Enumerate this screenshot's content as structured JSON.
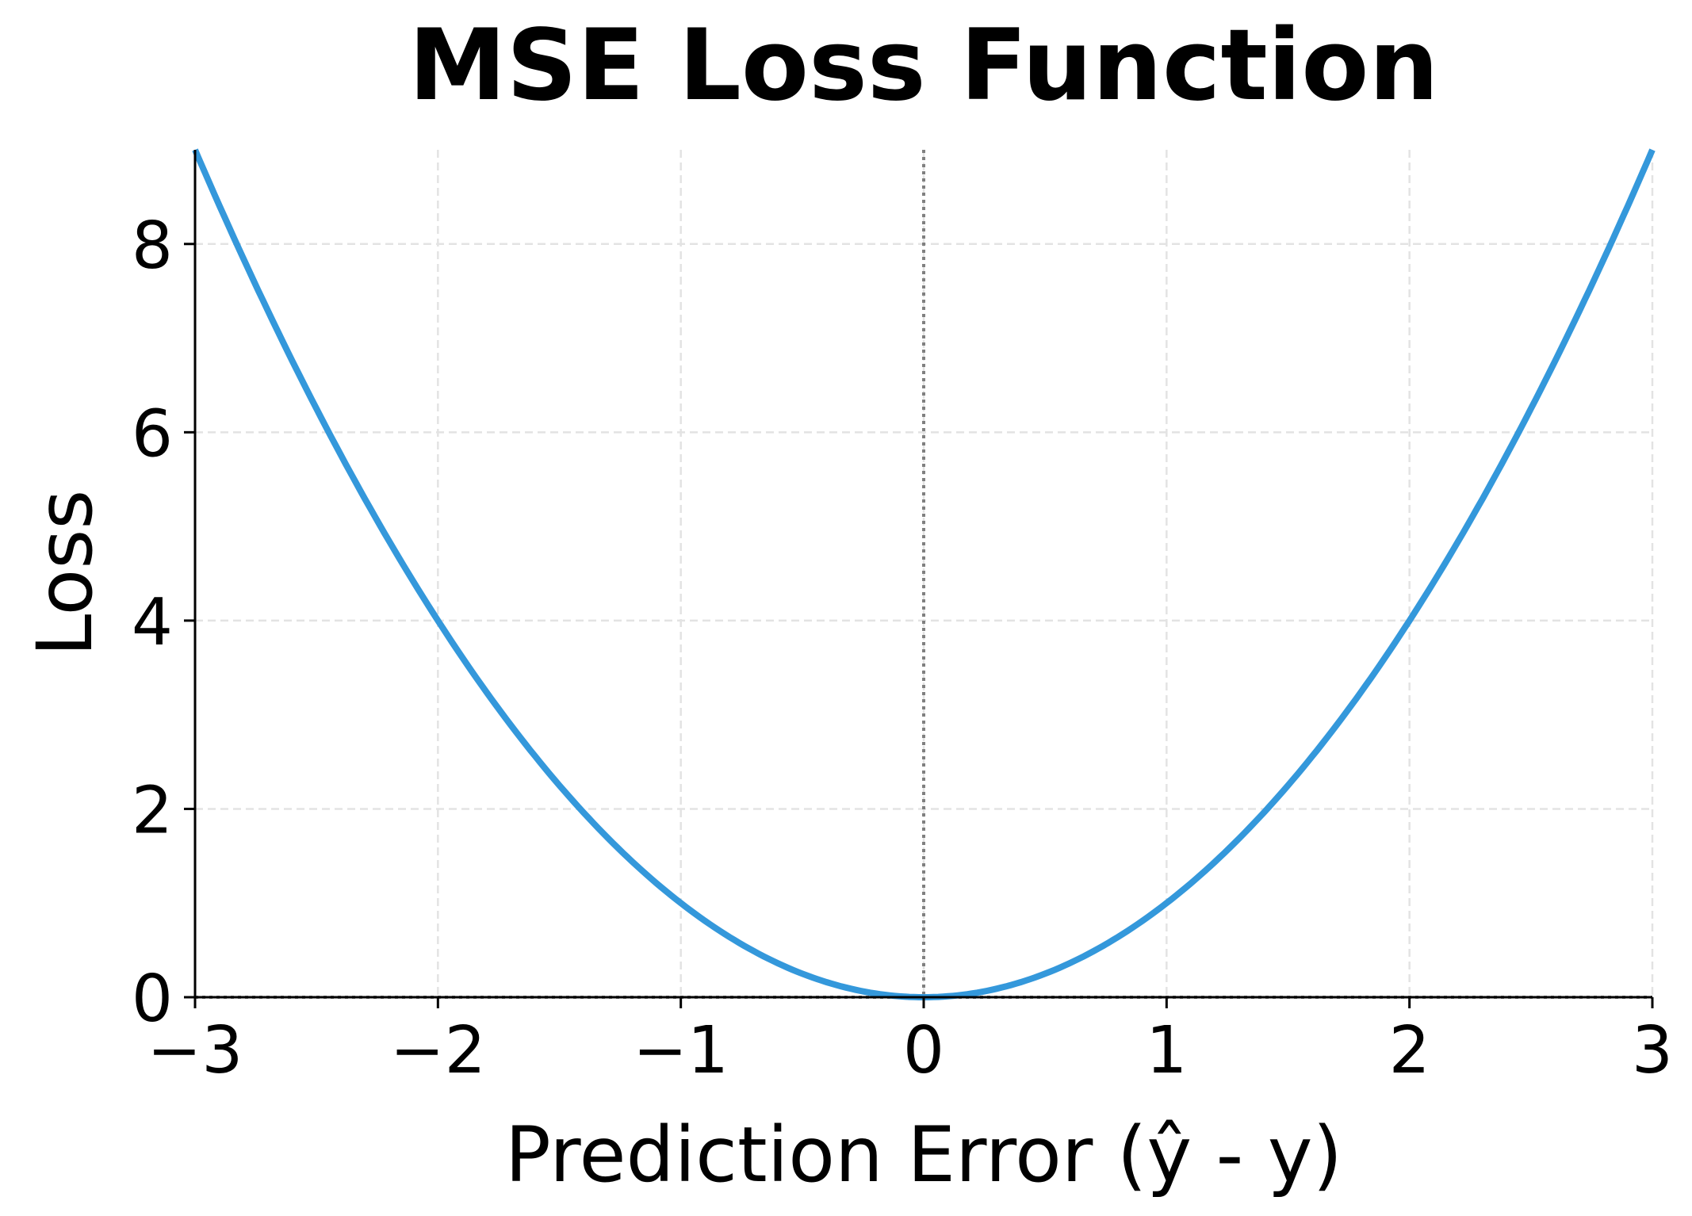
{
  "chart_data": {
    "type": "line",
    "title": "MSE Loss Function",
    "xlabel": "Prediction Error (ŷ - y)",
    "ylabel": "Loss",
    "xlim": [
      -3,
      3
    ],
    "ylim": [
      0,
      9
    ],
    "xticks": [
      -3,
      -2,
      -1,
      0,
      1,
      2,
      3
    ],
    "xtick_labels": [
      "−3",
      "−2",
      "−1",
      "0",
      "1",
      "2",
      "3"
    ],
    "yticks": [
      0,
      2,
      4,
      6,
      8
    ],
    "ytick_labels": [
      "0",
      "2",
      "4",
      "6",
      "8"
    ],
    "grid": true,
    "series": [
      {
        "function": "y = x^2",
        "x_range": [
          -3,
          3
        ],
        "color": "#3498db",
        "x": [
          -3,
          -2.5,
          -2,
          -1.5,
          -1,
          -0.5,
          0,
          0.5,
          1,
          1.5,
          2,
          2.5,
          3
        ],
        "y": [
          9,
          6.25,
          4,
          2.25,
          1,
          0.25,
          0,
          0.25,
          1,
          2.25,
          4,
          6.25,
          9
        ]
      }
    ],
    "reference_lines": [
      {
        "orientation": "horizontal",
        "value": 0,
        "style": "dotted",
        "color": "#808080"
      },
      {
        "orientation": "vertical",
        "value": 0,
        "style": "dotted",
        "color": "#808080"
      }
    ]
  }
}
